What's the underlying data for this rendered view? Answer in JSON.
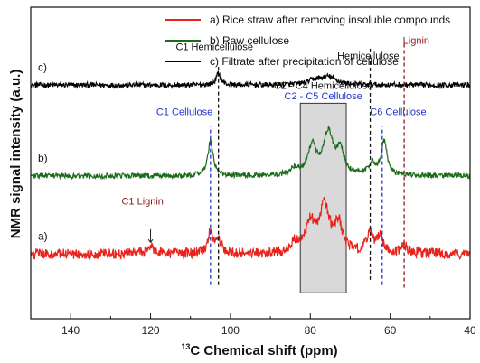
{
  "chart_data": {
    "type": "line",
    "title": "",
    "xlabel_superscript": "13",
    "xlabel": "C Chemical shift (ppm)",
    "ylabel": "NMR signal intensity (a.u.)",
    "xlim": [
      150,
      40
    ],
    "x_reversed": true,
    "x_ticks": [
      140,
      120,
      100,
      80,
      60,
      40
    ],
    "x_tick_labels": [
      "140",
      "120",
      "100",
      "80",
      "60",
      "40"
    ],
    "ylim": [
      -1,
      11
    ],
    "legend_position": "top-right",
    "grid": false,
    "highlight_region": {
      "x_from": 82.5,
      "x_to": 71,
      "label_primary": "C2 - C4 Hemicellulose",
      "label_secondary": "C2 - C5 Cellulose"
    },
    "series": [
      {
        "name": "c) Filtrate after precipitation of cellulose",
        "label": "c)",
        "color": "#000000",
        "baseline": 8.0,
        "noise": 0.1,
        "peaks": [
          {
            "x": 103,
            "height": 0.45,
            "width": 0.7
          },
          {
            "x": 79,
            "height": 0.15,
            "width": 2.0
          },
          {
            "x": 75.5,
            "height": 0.3,
            "width": 2.5
          }
        ]
      },
      {
        "name": "b) Raw cellulose",
        "label": "b)",
        "color": "#1a6b1a",
        "baseline": 4.5,
        "noise": 0.1,
        "peaks": [
          {
            "x": 105,
            "height": 1.35,
            "width": 0.8
          },
          {
            "x": 84,
            "height": 0.25,
            "width": 1.2
          },
          {
            "x": 79.5,
            "height": 1.1,
            "width": 1.3
          },
          {
            "x": 75.5,
            "height": 1.6,
            "width": 1.4
          },
          {
            "x": 72.5,
            "height": 0.9,
            "width": 1.2
          },
          {
            "x": 64.5,
            "height": 0.45,
            "width": 1.0
          },
          {
            "x": 61.5,
            "height": 1.3,
            "width": 0.9
          }
        ]
      },
      {
        "name": "a) Rice straw after removing insoluble compounds",
        "label": "a)",
        "color": "#e8231b",
        "baseline": 1.5,
        "noise": 0.2,
        "peaks": [
          {
            "x": 120,
            "height": 0.25,
            "width": 1.0
          },
          {
            "x": 105,
            "height": 0.8,
            "width": 0.8
          },
          {
            "x": 103,
            "height": 0.55,
            "width": 0.8
          },
          {
            "x": 84,
            "height": 0.35,
            "width": 1.2
          },
          {
            "x": 80,
            "height": 1.1,
            "width": 1.4
          },
          {
            "x": 76.5,
            "height": 1.7,
            "width": 1.5
          },
          {
            "x": 73,
            "height": 1.1,
            "width": 1.3
          },
          {
            "x": 65,
            "height": 0.75,
            "width": 1.0
          },
          {
            "x": 62.5,
            "height": 0.65,
            "width": 0.9
          },
          {
            "x": 56.5,
            "height": 0.3,
            "width": 0.9
          }
        ]
      }
    ],
    "reference_lines": [
      {
        "x": 103,
        "color": "#111111",
        "y_from": 0.3,
        "y_to": 8.7
      },
      {
        "x": 105,
        "color": "#2233cc",
        "y_from": 0.3,
        "y_to": 6.4
      },
      {
        "x": 65,
        "color": "#111111",
        "y_from": 0.5,
        "y_to": 9.4
      },
      {
        "x": 62,
        "color": "#2233cc",
        "y_from": 0.3,
        "y_to": 6.4
      },
      {
        "x": 56.5,
        "color": "#8b1a1a",
        "y_from": 0.2,
        "y_to": 9.6
      }
    ],
    "annotations": [
      {
        "text": "C1 Hemicellulose",
        "x": 104,
        "y": 9.35,
        "color": "#111111"
      },
      {
        "text": "C1 Cellulose",
        "x": 111.5,
        "y": 6.85,
        "color": "#2233cc"
      },
      {
        "text": "C1 Lignin",
        "x": 122,
        "y": 3.4,
        "color": "#8b1a1a"
      },
      {
        "text": "Hemicellulose",
        "x": 65.5,
        "y": 9.0,
        "color": "#111111"
      },
      {
        "text": "Lignin",
        "x": 53.5,
        "y": 9.6,
        "color": "#8b1a1a"
      },
      {
        "text": "C6 Cellulose",
        "x": 58,
        "y": 6.85,
        "color": "#2233cc"
      }
    ],
    "lignin_arrow": {
      "x": 120,
      "y_from": 2.45,
      "y_to": 1.95,
      "color": "#222222"
    }
  }
}
